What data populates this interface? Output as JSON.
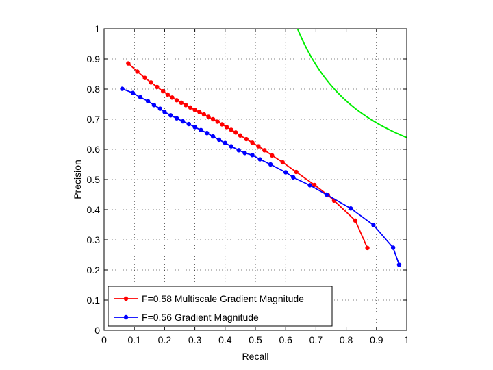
{
  "chart_data": {
    "type": "line",
    "title": "",
    "xlabel": "Recall",
    "ylabel": "Precision",
    "xlim": [
      0,
      1
    ],
    "ylim": [
      0,
      1
    ],
    "grid": true,
    "legend_position": "bottom-left",
    "xticks": [
      "0",
      "0.1",
      "0.2",
      "0.3",
      "0.4",
      "0.5",
      "0.6",
      "0.7",
      "0.8",
      "0.9",
      "1"
    ],
    "yticks": [
      "0",
      "0.1",
      "0.2",
      "0.3",
      "0.4",
      "0.5",
      "0.6",
      "0.7",
      "0.8",
      "0.9",
      "1"
    ],
    "series": [
      {
        "name": "F=0.58 Multiscale Gradient Magnitude",
        "color": "#ff0000",
        "marker": "dot",
        "points": [
          [
            0.08,
            0.885
          ],
          [
            0.11,
            0.858
          ],
          [
            0.135,
            0.837
          ],
          [
            0.155,
            0.822
          ],
          [
            0.175,
            0.807
          ],
          [
            0.195,
            0.793
          ],
          [
            0.21,
            0.782
          ],
          [
            0.225,
            0.772
          ],
          [
            0.24,
            0.763
          ],
          [
            0.255,
            0.755
          ],
          [
            0.27,
            0.747
          ],
          [
            0.285,
            0.739
          ],
          [
            0.3,
            0.731
          ],
          [
            0.315,
            0.724
          ],
          [
            0.33,
            0.716
          ],
          [
            0.345,
            0.708
          ],
          [
            0.36,
            0.7
          ],
          [
            0.375,
            0.692
          ],
          [
            0.39,
            0.683
          ],
          [
            0.405,
            0.674
          ],
          [
            0.42,
            0.665
          ],
          [
            0.435,
            0.656
          ],
          [
            0.45,
            0.646
          ],
          [
            0.47,
            0.634
          ],
          [
            0.49,
            0.622
          ],
          [
            0.51,
            0.61
          ],
          [
            0.53,
            0.597
          ],
          [
            0.555,
            0.58
          ],
          [
            0.59,
            0.557
          ],
          [
            0.635,
            0.525
          ],
          [
            0.695,
            0.482
          ],
          [
            0.74,
            0.448
          ],
          [
            0.76,
            0.43
          ],
          [
            0.83,
            0.364
          ],
          [
            0.87,
            0.273
          ]
        ]
      },
      {
        "name": "F=0.56 Gradient Magnitude",
        "color": "#0000ff",
        "marker": "dot",
        "points": [
          [
            0.06,
            0.801
          ],
          [
            0.095,
            0.787
          ],
          [
            0.12,
            0.773
          ],
          [
            0.145,
            0.76
          ],
          [
            0.165,
            0.747
          ],
          [
            0.185,
            0.735
          ],
          [
            0.2,
            0.724
          ],
          [
            0.22,
            0.713
          ],
          [
            0.24,
            0.703
          ],
          [
            0.26,
            0.693
          ],
          [
            0.28,
            0.684
          ],
          [
            0.3,
            0.674
          ],
          [
            0.32,
            0.664
          ],
          [
            0.34,
            0.654
          ],
          [
            0.36,
            0.643
          ],
          [
            0.38,
            0.632
          ],
          [
            0.4,
            0.621
          ],
          [
            0.42,
            0.61
          ],
          [
            0.445,
            0.597
          ],
          [
            0.465,
            0.588
          ],
          [
            0.49,
            0.581
          ],
          [
            0.515,
            0.567
          ],
          [
            0.55,
            0.55
          ],
          [
            0.6,
            0.524
          ],
          [
            0.625,
            0.507
          ],
          [
            0.68,
            0.481
          ],
          [
            0.735,
            0.45
          ],
          [
            0.815,
            0.404
          ],
          [
            0.89,
            0.349
          ],
          [
            0.955,
            0.274
          ],
          [
            0.975,
            0.217
          ]
        ]
      }
    ],
    "iso_f_curve": {
      "color": "#00ee00",
      "f_value": 0.78
    }
  }
}
